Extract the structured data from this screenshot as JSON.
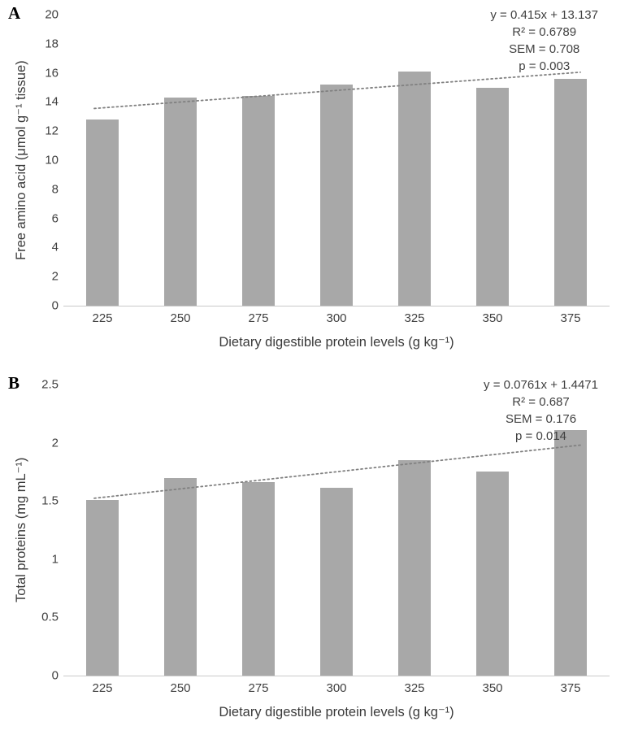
{
  "chart_data": [
    {
      "type": "bar",
      "panel": "A",
      "categories": [
        "225",
        "250",
        "275",
        "300",
        "325",
        "350",
        "375"
      ],
      "values": [
        12.8,
        14.3,
        14.4,
        15.2,
        16.1,
        15.0,
        15.6
      ],
      "xlabel": "Dietary digestible protein levels (g kg⁻¹)",
      "ylabel": "Free amino acid (μmol g⁻¹ tissue)",
      "ylim": [
        0,
        20
      ],
      "ytick_step": 2,
      "bar_color": "#a8a8a8",
      "grid": false,
      "legend": "none",
      "trendline": {
        "slope": 0.415,
        "intercept": 13.137,
        "style": "dotted",
        "color": "#808080"
      },
      "annotation": [
        "y = 0.415x + 13.137",
        "R² = 0.6789",
        "SEM = 0.708",
        "p = 0.003"
      ]
    },
    {
      "type": "bar",
      "panel": "B",
      "categories": [
        "225",
        "250",
        "275",
        "300",
        "325",
        "350",
        "375"
      ],
      "values": [
        1.51,
        1.7,
        1.66,
        1.61,
        1.85,
        1.75,
        2.11
      ],
      "xlabel": "Dietary digestible protein levels (g kg⁻¹)",
      "ylabel": "Total proteins (mg mL⁻¹)",
      "ylim": [
        0,
        2.5
      ],
      "ytick_step": 0.5,
      "bar_color": "#a8a8a8",
      "grid": false,
      "legend": "none",
      "trendline": {
        "slope": 0.0761,
        "intercept": 1.4471,
        "style": "dotted",
        "color": "#808080"
      },
      "annotation": [
        "y = 0.0761x + 1.4471",
        "R² = 0.687",
        "SEM = 0.176",
        "p = 0.014"
      ]
    }
  ]
}
